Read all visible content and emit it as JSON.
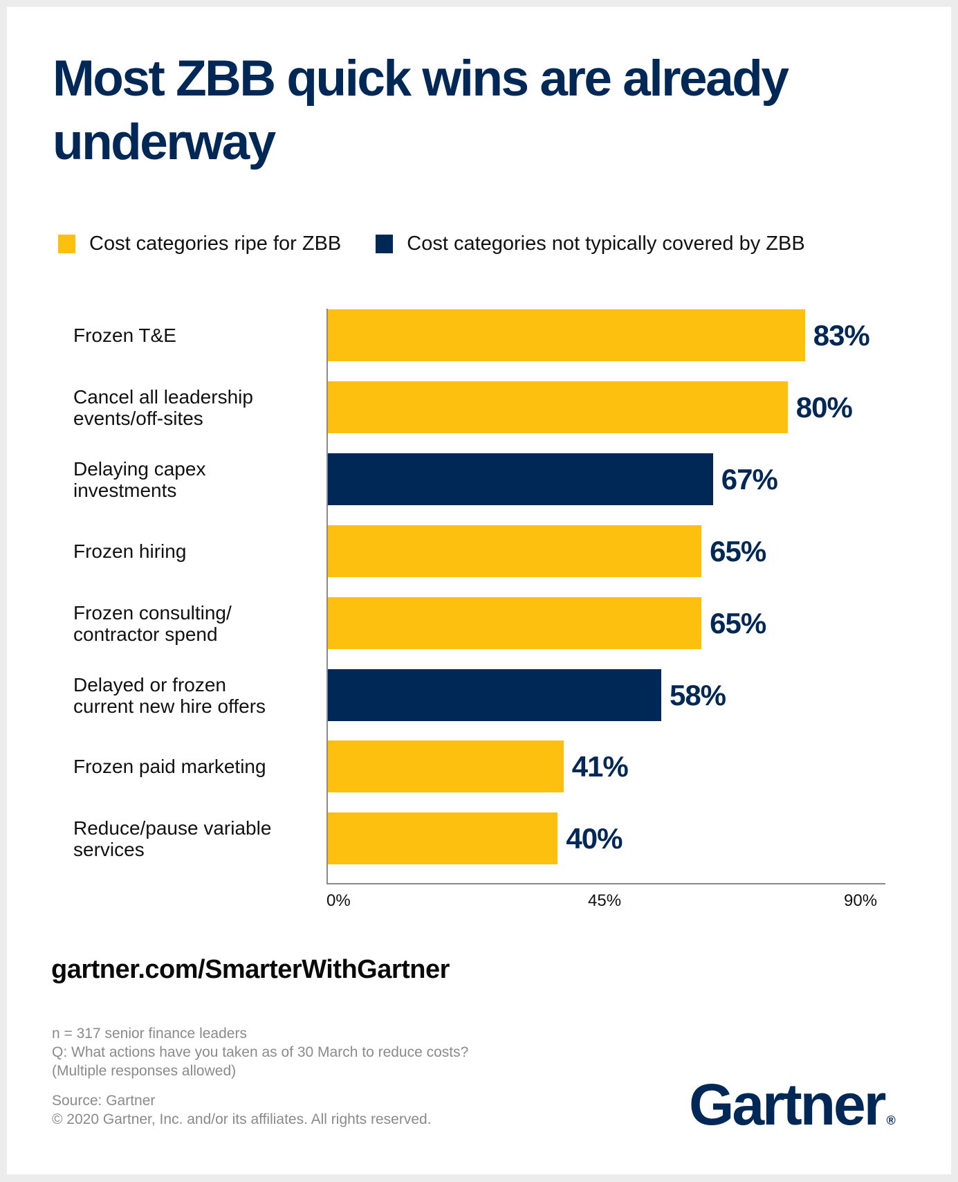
{
  "title": "Most ZBB quick wins are already underway",
  "colors": {
    "ripe": "#FDC00F",
    "not_covered": "#002856",
    "title": "#002856",
    "axis": "#8a8a8a"
  },
  "legend": [
    {
      "label": "Cost categories ripe for ZBB",
      "series": "ripe"
    },
    {
      "label": "Cost categories not typically covered by ZBB",
      "series": "not_covered"
    }
  ],
  "chart_data": {
    "type": "bar",
    "orientation": "horizontal",
    "title": "Most ZBB quick wins are already underway",
    "xlabel": "",
    "ylabel": "",
    "xlim": [
      0,
      90
    ],
    "x_ticks": [
      "0%",
      "45%",
      "90%"
    ],
    "grid": false,
    "legend_position": "top-left",
    "categories": [
      "Frozen T&E",
      "Cancel all leadership\nevents/off-sites",
      "Delaying capex\ninvestments",
      "Frozen hiring",
      "Frozen consulting/\ncontractor spend",
      "Delayed or frozen\ncurrent new hire offers",
      "Frozen paid marketing",
      "Reduce/pause variable\nservices"
    ],
    "values": [
      83,
      80,
      67,
      65,
      65,
      58,
      41,
      40
    ],
    "value_labels": [
      "83%",
      "80%",
      "67%",
      "65%",
      "65%",
      "58%",
      "41%",
      "40%"
    ],
    "series_membership": [
      "ripe",
      "ripe",
      "not_covered",
      "ripe",
      "ripe",
      "not_covered",
      "ripe",
      "ripe"
    ],
    "series": [
      {
        "name": "Cost categories ripe for ZBB",
        "key": "ripe"
      },
      {
        "name": "Cost categories not typically covered by ZBB",
        "key": "not_covered"
      }
    ]
  },
  "footer": {
    "url": "gartner.com/SmarterWithGartner",
    "notes": [
      "n = 317 senior finance leaders",
      "Q: What actions have you taken as of 30 March to reduce costs?",
      "(Multiple responses allowed)"
    ],
    "source": "Source: Gartner",
    "copyright": "© 2020 Gartner, Inc. and/or its affiliates. All rights reserved.",
    "logo_text": "Gartner",
    "logo_mark": "®"
  }
}
